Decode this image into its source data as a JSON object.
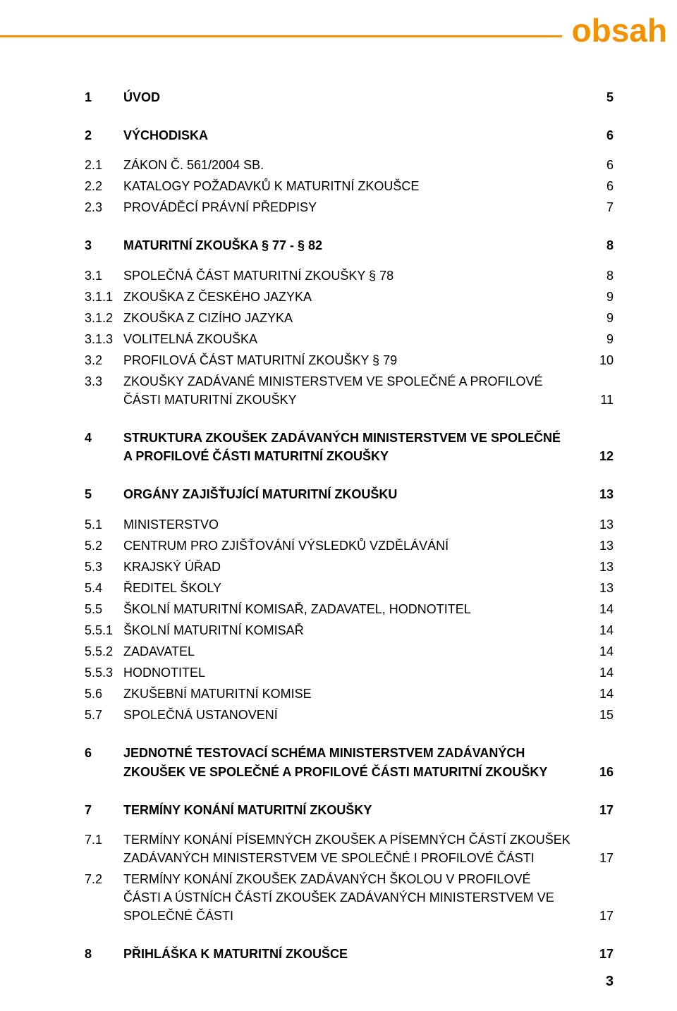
{
  "colors": {
    "accent": "#f39200",
    "text": "#000000",
    "background": "#ffffff"
  },
  "typography": {
    "body_fontsize_pt": 13,
    "header_fontsize_pt": 34,
    "font_family": "Myriad Pro / sans-serif"
  },
  "header": {
    "title": "obsah"
  },
  "page_number": "3",
  "toc": [
    {
      "num": "1",
      "label": "ÚVOD",
      "page": "5",
      "bold": true,
      "gap_after": "lg"
    },
    {
      "num": "2",
      "label": "VÝCHODISKA",
      "page": "6",
      "bold": true,
      "gap_after": "md"
    },
    {
      "num": "2.1",
      "label": "ZÁKON Č. 561/2004 SB.",
      "page": "6",
      "bold": false,
      "gap_after": "sm"
    },
    {
      "num": "2.2",
      "label": "KATALOGY POŽADAVKŮ K MATURITNÍ ZKOUŠCE",
      "page": "6",
      "bold": false,
      "gap_after": "sm"
    },
    {
      "num": "2.3",
      "label": "PROVÁDĚCÍ PRÁVNÍ PŘEDPISY",
      "page": "7",
      "bold": false,
      "gap_after": "lg"
    },
    {
      "num": "3",
      "label": "MATURITNÍ ZKOUŠKA § 77 - § 82",
      "page": "8",
      "bold": true,
      "gap_after": "md"
    },
    {
      "num": "3.1",
      "label": "SPOLEČNÁ ČÁST MATURITNÍ ZKOUŠKY  § 78",
      "page": "8",
      "bold": false,
      "gap_after": "sm"
    },
    {
      "num": "3.1.1",
      "label": "ZKOUŠKA Z ČESKÉHO JAZYKA",
      "page": "9",
      "bold": false,
      "gap_after": "sm"
    },
    {
      "num": "3.1.2",
      "label": "ZKOUŠKA Z CIZÍHO JAZYKA",
      "page": "9",
      "bold": false,
      "gap_after": "sm"
    },
    {
      "num": "3.1.3",
      "label": "VOLITELNÁ ZKOUŠKA",
      "page": "9",
      "bold": false,
      "gap_after": "sm"
    },
    {
      "num": "3.2",
      "label": "PROFILOVÁ ČÁST MATURITNÍ ZKOUŠKY  § 79",
      "page": "10",
      "bold": false,
      "gap_after": "sm"
    },
    {
      "num": "3.3",
      "label": "ZKOUŠKY ZADÁVANÉ MINISTERSTVEM VE SPOLEČNÉ A  PROFILOVÉ ČÁSTI  MATURITNÍ ZKOUŠKY",
      "page": "11",
      "bold": false,
      "gap_after": "lg"
    },
    {
      "num": "4",
      "label": "STRUKTURA ZKOUŠEK ZADÁVANÝCH MINISTERSTVEM VE SPOLEČNÉ A PROFILOVÉ ČÁSTI MATURITNÍ ZKOUŠKY",
      "page": "12",
      "bold": true,
      "gap_after": "lg"
    },
    {
      "num": "5",
      "label": "ORGÁNY ZAJIŠŤUJÍCÍ MATURITNÍ ZKOUŠKU",
      "page": "13",
      "bold": true,
      "gap_after": "md"
    },
    {
      "num": "5.1",
      "label": "MINISTERSTVO",
      "page": "13",
      "bold": false,
      "gap_after": "sm"
    },
    {
      "num": "5.2",
      "label": "CENTRUM PRO ZJIŠŤOVÁNÍ VÝSLEDKŮ VZDĚLÁVÁNÍ",
      "page": "13",
      "bold": false,
      "gap_after": "sm"
    },
    {
      "num": "5.3",
      "label": "KRAJSKÝ ÚŘAD",
      "page": "13",
      "bold": false,
      "gap_after": "sm"
    },
    {
      "num": "5.4",
      "label": "ŘEDITEL ŠKOLY",
      "page": "13",
      "bold": false,
      "gap_after": "sm"
    },
    {
      "num": "5.5",
      "label": "ŠKOLNÍ MATURITNÍ KOMISAŘ, ZADAVATEL, HODNOTITEL",
      "page": "14",
      "bold": false,
      "gap_after": "sm"
    },
    {
      "num": "5.5.1",
      "label": "ŠKOLNÍ MATURITNÍ KOMISAŘ",
      "page": "14",
      "bold": false,
      "gap_after": "sm"
    },
    {
      "num": "5.5.2",
      "label": "ZADAVATEL",
      "page": "14",
      "bold": false,
      "gap_after": "sm"
    },
    {
      "num": "5.5.3",
      "label": "HODNOTITEL",
      "page": "14",
      "bold": false,
      "gap_after": "sm"
    },
    {
      "num": "5.6",
      "label": "ZKUŠEBNÍ MATURITNÍ KOMISE",
      "page": "14",
      "bold": false,
      "gap_after": "sm"
    },
    {
      "num": "5.7",
      "label": "SPOLEČNÁ USTANOVENÍ",
      "page": "15",
      "bold": false,
      "gap_after": "lg"
    },
    {
      "num": "6",
      "label": "JEDNOTNÉ TESTOVACÍ SCHÉMA MINISTERSTVEM ZADÁVANÝCH ZKOUŠEK VE SPOLEČNÉ A PROFILOVÉ ČÁSTI MATURITNÍ ZKOUŠKY",
      "page": "16",
      "bold": true,
      "gap_after": "lg"
    },
    {
      "num": "7",
      "label": "TERMÍNY KONÁNÍ MATURITNÍ ZKOUŠKY",
      "page": "17",
      "bold": true,
      "gap_after": "md"
    },
    {
      "num": "7.1",
      "label": "TERMÍNY KONÁNÍ PÍSEMNÝCH ZKOUŠEK A PÍSEMNÝCH ČÁSTÍ ZKOUŠEK ZADÁVANÝCH MINISTERSTVEM VE SPOLEČNÉ I PROFILOVÉ ČÁSTI",
      "page": "17",
      "bold": false,
      "gap_after": "sm"
    },
    {
      "num": "7.2",
      "label": "TERMÍNY KONÁNÍ ZKOUŠEK ZADÁVANÝCH ŠKOLOU V PROFILOVÉ ČÁSTI A ÚSTNÍCH ČÁSTÍ ZKOUŠEK ZADÁVANÝCH MINISTERSTVEM VE SPOLEČNÉ ČÁSTI",
      "page": "17",
      "bold": false,
      "gap_after": "lg"
    },
    {
      "num": "8",
      "label": "PŘIHLÁŠKA K MATURITNÍ ZKOUŠCE",
      "page": "17",
      "bold": true,
      "gap_after": "lg"
    }
  ]
}
